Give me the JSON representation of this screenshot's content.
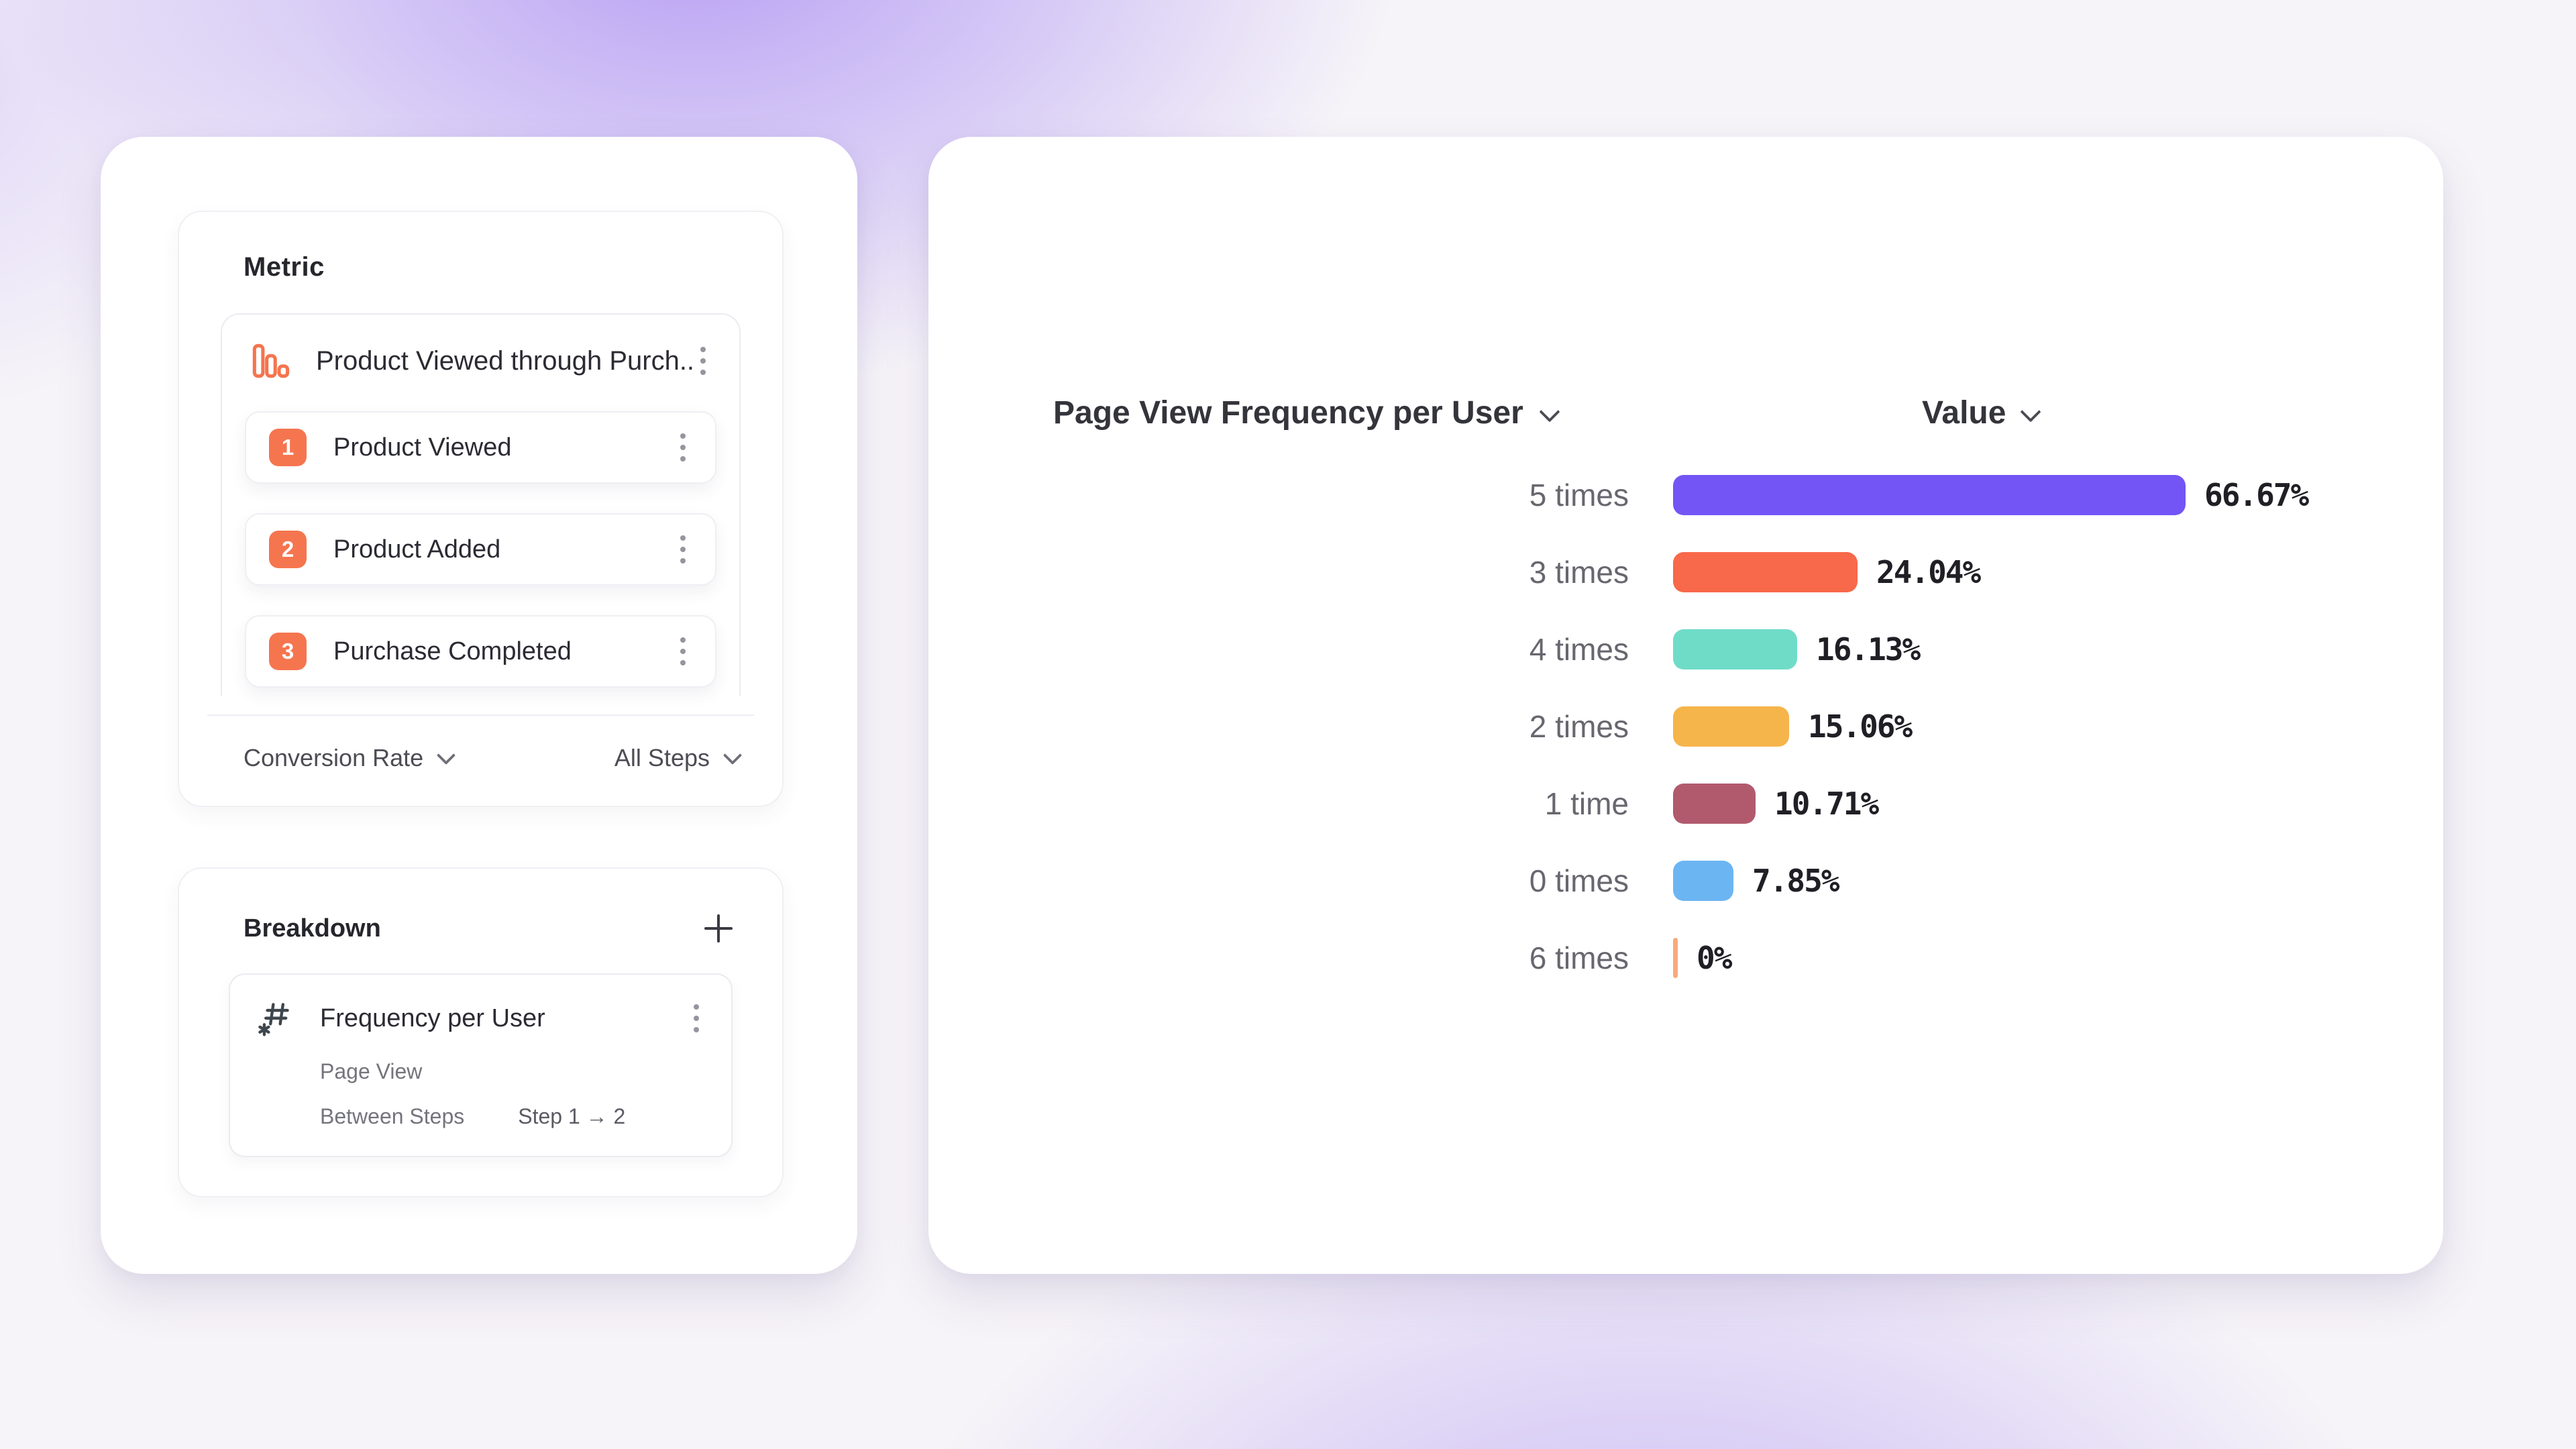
{
  "page": {
    "background_base": "#f6f4f8",
    "glow_color": "#936ff1",
    "card_bg": "#ffffff"
  },
  "metric": {
    "title": "Metric",
    "funnel": {
      "icon": "bar-chart-icon",
      "title": "Product Viewed through Purch...",
      "steps": [
        {
          "number": "1",
          "label": "Product Viewed"
        },
        {
          "number": "2",
          "label": "Product Added"
        },
        {
          "number": "3",
          "label": "Purchase Completed"
        }
      ]
    },
    "footer": {
      "measurement": "Conversion Rate",
      "scope": "All Steps"
    }
  },
  "breakdown": {
    "title": "Breakdown",
    "item": {
      "icon": "numeric-property-icon",
      "title": "Frequency per User",
      "event": "Page View",
      "between_label": "Between Steps",
      "steps_range": "Step 1 → 2"
    }
  },
  "chart": {
    "series_header": "Page View Frequency per User",
    "value_header": "Value"
  },
  "chart_data": {
    "type": "bar",
    "orientation": "horizontal",
    "title": "Page View Frequency per User",
    "xlabel": "Value",
    "ylabel": "Page View Frequency per User",
    "categories": [
      "5 times",
      "3 times",
      "4 times",
      "2 times",
      "1 time",
      "0 times",
      "6 times"
    ],
    "values": [
      66.67,
      24.04,
      16.13,
      15.06,
      10.71,
      7.85,
      0
    ],
    "value_labels": [
      "66.67%",
      "24.04%",
      "16.13%",
      "15.06%",
      "10.71%",
      "7.85%",
      "0%"
    ],
    "bar_colors": [
      "#7355F5",
      "#F8684A",
      "#6FDCC8",
      "#F5B54B",
      "#B15A6E",
      "#6CB5F3",
      "#F9A97D"
    ],
    "xlim": [
      0,
      66.67
    ],
    "grid": false,
    "legend": false,
    "sorted": "descending by value"
  },
  "colors": {
    "accent_coral": "#F5754F",
    "border": "#eceaf0",
    "text_dark": "#26262d",
    "text_gray": "#67676f",
    "kebab_gray": "#95959e"
  }
}
